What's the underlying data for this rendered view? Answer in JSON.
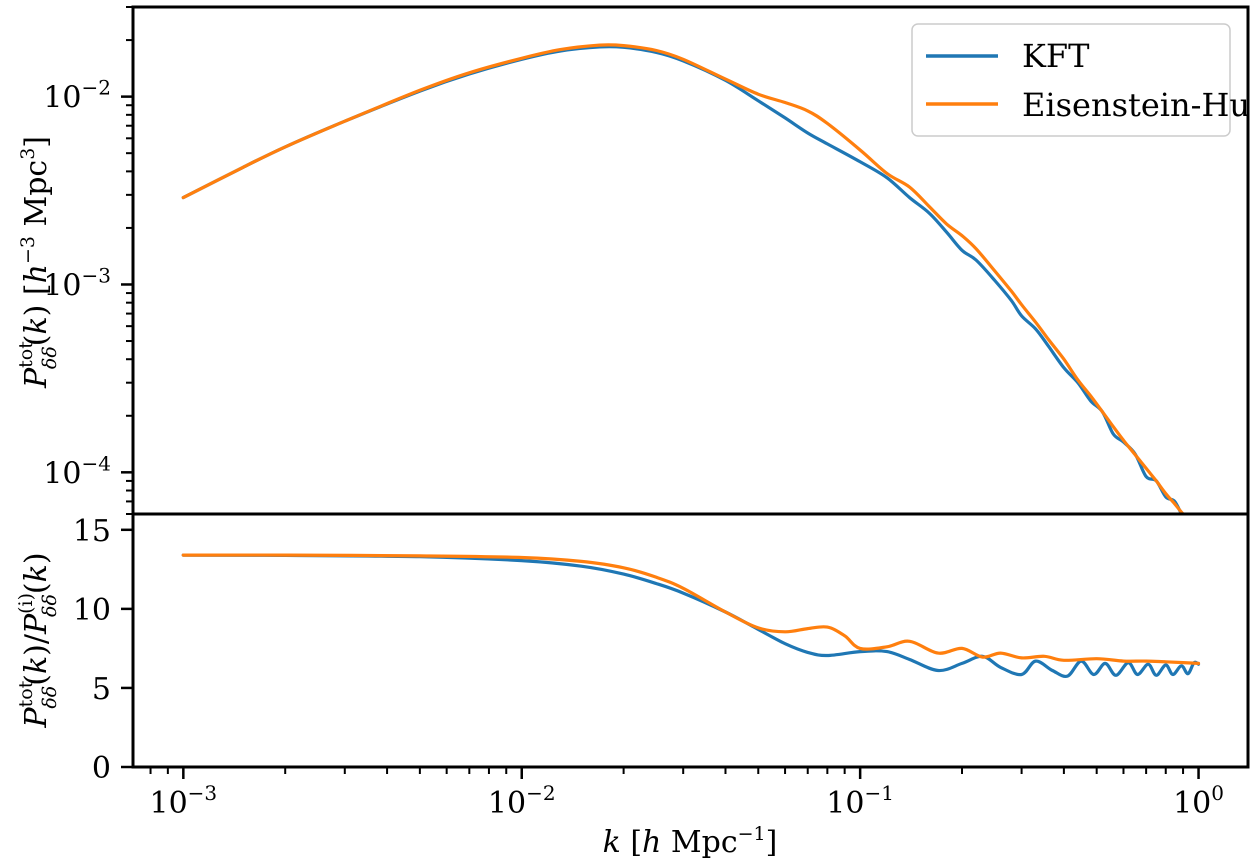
{
  "chart_data": [
    {
      "type": "line",
      "panel": "top",
      "xscale": "log",
      "yscale": "log",
      "xlim": [
        0.00071,
        1.4
      ],
      "ylim": [
        6e-05,
        0.03
      ],
      "ylabel": "P_δδ^tot(k) [h^−3 Mpc^3]",
      "yticks": [
        {
          "value": 0.0001,
          "label": "10^−4"
        },
        {
          "value": 0.001,
          "label": "10^−3"
        },
        {
          "value": 0.01,
          "label": "10^−2"
        }
      ],
      "legend": {
        "position": "top-right",
        "entries": [
          "KFT",
          "Eisenstein-Hu"
        ]
      },
      "series": [
        {
          "name": "KFT",
          "color": "#1f77b4",
          "x": [
            0.001,
            0.0015,
            0.002,
            0.003,
            0.005,
            0.007,
            0.01,
            0.013,
            0.017,
            0.02,
            0.025,
            0.03,
            0.04,
            0.05,
            0.06,
            0.07,
            0.08,
            0.1,
            0.12,
            0.14,
            0.16,
            0.18,
            0.2,
            0.22,
            0.25,
            0.28,
            0.3,
            0.33,
            0.36,
            0.4,
            0.44,
            0.48,
            0.52,
            0.56,
            0.6,
            0.65,
            0.7,
            0.75,
            0.8,
            0.85,
            0.9,
            0.95,
            1.0
          ],
          "y": [
            0.0029,
            0.0042,
            0.0054,
            0.0074,
            0.0107,
            0.0132,
            0.0158,
            0.0175,
            0.0184,
            0.0183,
            0.0172,
            0.0155,
            0.0122,
            0.0095,
            0.0077,
            0.0064,
            0.0056,
            0.0045,
            0.0037,
            0.0029,
            0.0024,
            0.0019,
            0.00152,
            0.00135,
            0.00105,
            0.00082,
            0.00068,
            0.00058,
            0.00047,
            0.00036,
            0.0003,
            0.00024,
            0.00021,
            0.00016,
            0.000145,
            0.000125,
            9.5e-05,
            9e-05,
            7.4e-05,
            7e-05,
            5.8e-05,
            5.2e-05,
            5e-05
          ]
        },
        {
          "name": "Eisenstein-Hu",
          "color": "#ff7f0e",
          "x": [
            0.001,
            0.0015,
            0.002,
            0.003,
            0.005,
            0.007,
            0.01,
            0.013,
            0.017,
            0.02,
            0.025,
            0.03,
            0.04,
            0.05,
            0.06,
            0.07,
            0.08,
            0.1,
            0.12,
            0.14,
            0.16,
            0.18,
            0.2,
            0.22,
            0.25,
            0.28,
            0.3,
            0.33,
            0.36,
            0.4,
            0.44,
            0.48,
            0.52,
            0.56,
            0.6,
            0.65,
            0.7,
            0.75,
            0.8,
            0.85,
            0.9,
            0.95,
            1.0
          ],
          "y": [
            0.0029,
            0.0042,
            0.0054,
            0.0074,
            0.0108,
            0.0134,
            0.016,
            0.0178,
            0.0188,
            0.0187,
            0.0176,
            0.0158,
            0.0124,
            0.0103,
            0.0093,
            0.0084,
            0.0072,
            0.0052,
            0.0039,
            0.0033,
            0.0026,
            0.0021,
            0.00182,
            0.00155,
            0.00118,
            0.00092,
            0.00078,
            0.00063,
            0.00051,
            0.0004,
            0.00031,
            0.000255,
            0.00021,
            0.000175,
            0.000148,
            0.000124,
            0.000105,
            9e-05,
            7.7e-05,
            6.8e-05,
            6e-05,
            5.5e-05,
            5e-05
          ]
        }
      ]
    },
    {
      "type": "line",
      "panel": "bottom",
      "xscale": "log",
      "yscale": "linear",
      "xlim": [
        0.00071,
        1.4
      ],
      "ylim": [
        0,
        16
      ],
      "xlabel": "k [h Mpc^−1]",
      "ylabel": "P_δδ^tot(k)/P_δδ^(i)(k)",
      "yticks": [
        {
          "value": 0,
          "label": "0"
        },
        {
          "value": 5,
          "label": "5"
        },
        {
          "value": 10,
          "label": "10"
        },
        {
          "value": 15,
          "label": "15"
        }
      ],
      "xticks": [
        {
          "value": 0.001,
          "label": "10^−3"
        },
        {
          "value": 0.01,
          "label": "10^−2"
        },
        {
          "value": 0.1,
          "label": "10^−1"
        },
        {
          "value": 1,
          "label": "10^0"
        }
      ],
      "series": [
        {
          "name": "KFT",
          "color": "#1f77b4",
          "x": [
            0.001,
            0.002,
            0.005,
            0.01,
            0.015,
            0.02,
            0.025,
            0.03,
            0.04,
            0.05,
            0.06,
            0.07,
            0.08,
            0.1,
            0.12,
            0.14,
            0.17,
            0.2,
            0.23,
            0.26,
            0.3,
            0.33,
            0.37,
            0.41,
            0.45,
            0.49,
            0.53,
            0.57,
            0.62,
            0.66,
            0.71,
            0.75,
            0.8,
            0.84,
            0.89,
            0.93,
            0.97,
            1.0
          ],
          "y": [
            13.4,
            13.38,
            13.3,
            13.05,
            12.7,
            12.2,
            11.6,
            11.0,
            9.8,
            8.7,
            7.8,
            7.25,
            7.05,
            7.3,
            7.3,
            6.8,
            6.1,
            6.55,
            7.0,
            6.3,
            5.85,
            6.7,
            6.1,
            5.75,
            6.7,
            5.85,
            6.55,
            5.8,
            6.6,
            5.85,
            6.5,
            5.8,
            6.45,
            5.85,
            6.4,
            5.9,
            6.6,
            6.5
          ]
        },
        {
          "name": "Eisenstein-Hu",
          "color": "#ff7f0e",
          "x": [
            0.001,
            0.002,
            0.005,
            0.01,
            0.015,
            0.02,
            0.025,
            0.03,
            0.04,
            0.05,
            0.06,
            0.07,
            0.08,
            0.09,
            0.1,
            0.12,
            0.14,
            0.17,
            0.2,
            0.23,
            0.26,
            0.3,
            0.35,
            0.4,
            0.5,
            0.6,
            0.7,
            0.8,
            0.9,
            1.0
          ],
          "y": [
            13.4,
            13.4,
            13.35,
            13.25,
            13.0,
            12.6,
            12.0,
            11.3,
            9.8,
            8.8,
            8.55,
            8.75,
            8.85,
            8.3,
            7.5,
            7.6,
            7.95,
            7.2,
            7.5,
            6.95,
            7.2,
            6.9,
            7.0,
            6.75,
            6.85,
            6.7,
            6.7,
            6.65,
            6.6,
            6.55
          ]
        }
      ]
    }
  ]
}
